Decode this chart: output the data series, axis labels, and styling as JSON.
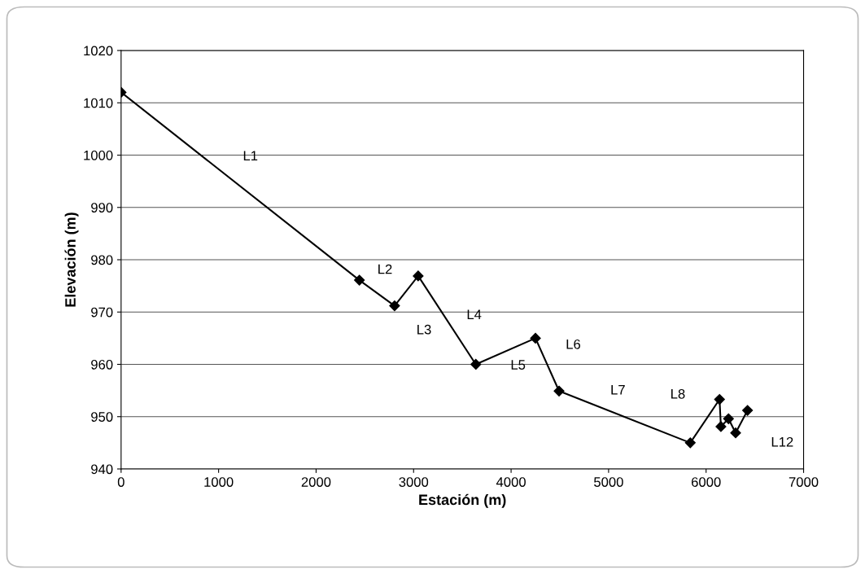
{
  "chart_data": {
    "type": "line",
    "xlabel": "Estación (m)",
    "ylabel": "Elevación (m)",
    "x": [
      0,
      2444,
      2805,
      3047,
      3638,
      4250,
      4492,
      5838,
      6138,
      6152,
      6230,
      6303,
      6425
    ],
    "series": [
      {
        "color": "#000000",
        "values": [
          1012.0,
          976.1,
          971.2,
          976.9,
          960.0,
          965.0,
          954.9,
          945.0,
          953.3,
          948.1,
          949.6,
          946.9,
          951.2
        ]
      }
    ],
    "xlim": [
      0,
      7000
    ],
    "xticks": [
      0,
      1000,
      2000,
      3000,
      4000,
      5000,
      6000,
      7000
    ],
    "ylim": [
      940,
      1020
    ],
    "yticks": [
      940,
      950,
      960,
      970,
      980,
      990,
      1000,
      1010,
      1020
    ],
    "grid": "y",
    "marker": "diamond",
    "line_style": "solid",
    "legend": false,
    "annotations": [
      {
        "text": "L1",
        "x": 1222,
        "y": 994.05
      },
      {
        "text": "L2",
        "x": 2624.5,
        "y": 973.65
      },
      {
        "text": "L3",
        "x": 2805,
        "y": 971.2
      },
      {
        "text": "L4",
        "x": 3342.5,
        "y": 968.45
      },
      {
        "text": "L5",
        "x": 3944,
        "y": 962.5
      },
      {
        "text": "L6",
        "x": 4371,
        "y": 959.95
      },
      {
        "text": "L7",
        "x": 5165,
        "y": 949.95
      },
      {
        "text": "L8",
        "x": 5988,
        "y": 949.15
      },
      {
        "text": "L12",
        "x": 6364,
        "y": 949.05
      }
    ]
  }
}
